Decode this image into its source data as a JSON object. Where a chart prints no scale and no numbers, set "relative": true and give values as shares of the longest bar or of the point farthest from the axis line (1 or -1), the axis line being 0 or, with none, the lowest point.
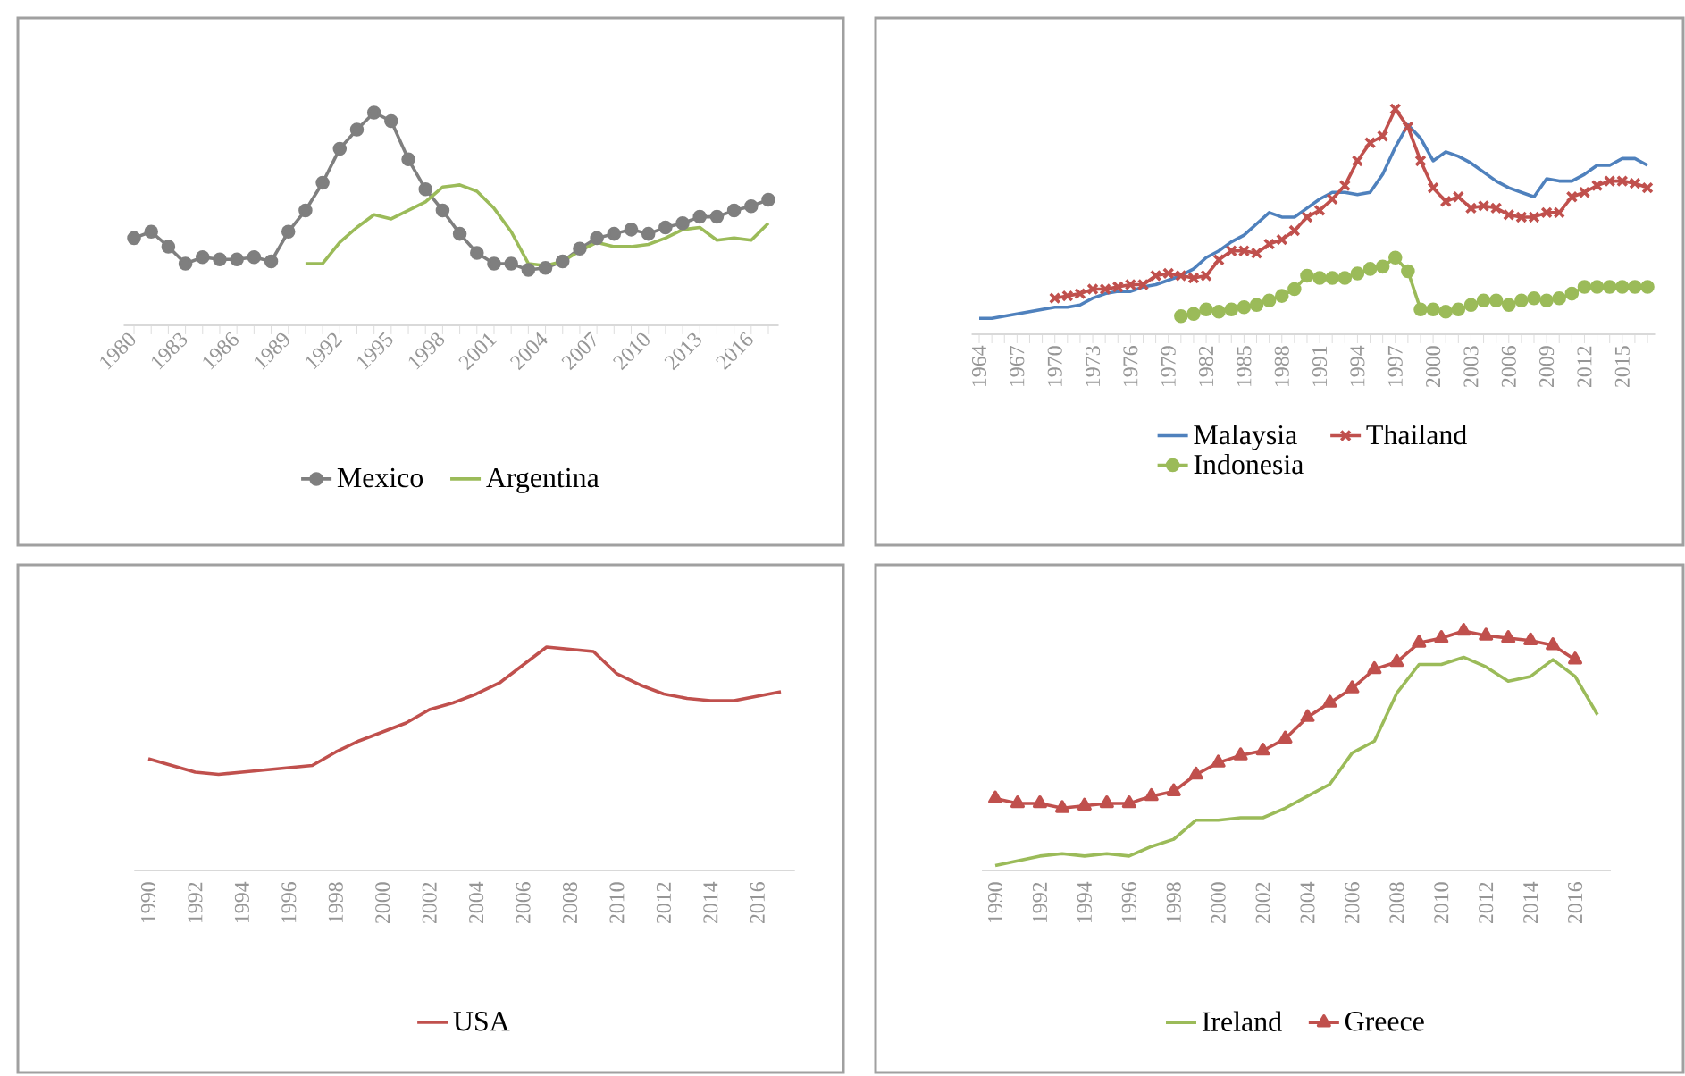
{
  "chart_data": [
    {
      "type": "line",
      "relative": true,
      "legend": "bottom",
      "categories": [
        "1980",
        null,
        null,
        "1983",
        null,
        null,
        "1986",
        null,
        null,
        "1989",
        null,
        null,
        "1992",
        null,
        null,
        "1995",
        null,
        null,
        "1998",
        null,
        null,
        "2001",
        null,
        null,
        "2004",
        null,
        null,
        "2007",
        null,
        null,
        "2010",
        null,
        null,
        "2013",
        null,
        null,
        "2016",
        null
      ],
      "series": [
        {
          "name": "Mexico",
          "color": "#7f7f7f",
          "marker": "circle",
          "values": [
            0.41,
            0.44,
            0.37,
            0.29,
            0.32,
            0.31,
            0.31,
            0.32,
            0.3,
            0.44,
            0.54,
            0.67,
            0.83,
            0.92,
            1,
            0.96,
            0.78,
            0.64,
            0.54,
            0.43,
            0.34,
            0.29,
            0.29,
            0.26,
            0.27,
            0.3,
            0.36,
            0.41,
            0.43,
            0.45,
            0.43,
            0.46,
            0.48,
            0.51,
            0.51,
            0.54,
            0.56,
            0.59
          ]
        },
        {
          "name": "Argentina",
          "color": "#9bbb59",
          "values": [
            null,
            null,
            null,
            null,
            null,
            null,
            null,
            null,
            null,
            null,
            0.29,
            0.29,
            0.39,
            0.46,
            0.52,
            0.5,
            0.54,
            0.58,
            0.65,
            0.66,
            0.63,
            0.55,
            0.44,
            0.29,
            0.28,
            0.3,
            0.35,
            0.39,
            0.37,
            0.37,
            0.38,
            0.41,
            0.45,
            0.46,
            0.4,
            0.41,
            0.4,
            0.48
          ]
        }
      ]
    },
    {
      "type": "line",
      "relative": true,
      "legend": "bottom",
      "categories": [
        "1964",
        null,
        null,
        "1967",
        null,
        null,
        "1970",
        null,
        null,
        "1973",
        null,
        null,
        "1976",
        null,
        null,
        "1979",
        null,
        null,
        "1982",
        null,
        null,
        "1985",
        null,
        null,
        "1988",
        null,
        null,
        "1991",
        null,
        null,
        "1994",
        null,
        null,
        "1997",
        null,
        null,
        "2000",
        null,
        null,
        "2003",
        null,
        null,
        "2006",
        null,
        null,
        "2009",
        null,
        null,
        "2012",
        null,
        null,
        "2015",
        null,
        null
      ],
      "series": [
        {
          "name": "Malaysia",
          "color": "#4f81bd",
          "values": [
            0.07,
            0.07,
            0.08,
            0.09,
            0.1,
            0.11,
            0.12,
            0.12,
            0.13,
            0.16,
            0.18,
            0.19,
            0.19,
            0.21,
            0.22,
            0.24,
            0.26,
            0.29,
            0.34,
            0.37,
            0.41,
            0.44,
            0.49,
            0.54,
            0.52,
            0.52,
            0.56,
            0.6,
            0.63,
            0.63,
            0.62,
            0.63,
            0.71,
            0.83,
            0.93,
            0.87,
            0.77,
            0.81,
            0.79,
            0.76,
            0.72,
            0.68,
            0.65,
            0.63,
            0.61,
            0.69,
            0.68,
            0.68,
            0.71,
            0.75,
            0.75,
            0.78,
            0.78,
            0.75
          ]
        },
        {
          "name": "Thailand",
          "color": "#c0504d",
          "marker": "cross",
          "values": [
            null,
            null,
            null,
            null,
            null,
            null,
            0.16,
            0.17,
            0.18,
            0.2,
            0.2,
            0.21,
            0.22,
            0.22,
            0.26,
            0.27,
            0.26,
            0.25,
            0.26,
            0.33,
            0.37,
            0.37,
            0.36,
            0.4,
            0.42,
            0.46,
            0.52,
            0.55,
            0.6,
            0.66,
            0.77,
            0.85,
            0.88,
            1,
            0.92,
            0.77,
            0.65,
            0.59,
            0.61,
            0.56,
            0.57,
            0.56,
            0.53,
            0.52,
            0.52,
            0.54,
            0.54,
            0.61,
            0.63,
            0.66,
            0.68,
            0.68,
            0.67,
            0.65
          ]
        },
        {
          "name": "Indonesia",
          "color": "#9bbb59",
          "marker": "circle",
          "values": [
            null,
            null,
            null,
            null,
            null,
            null,
            null,
            null,
            null,
            null,
            null,
            null,
            null,
            null,
            null,
            null,
            0.08,
            0.09,
            0.11,
            0.1,
            0.11,
            0.12,
            0.13,
            0.15,
            0.17,
            0.2,
            0.26,
            0.25,
            0.25,
            0.25,
            0.27,
            0.29,
            0.3,
            0.34,
            0.28,
            0.11,
            0.11,
            0.1,
            0.11,
            0.13,
            0.15,
            0.15,
            0.13,
            0.15,
            0.16,
            0.15,
            0.16,
            0.18,
            0.21,
            0.21,
            0.21,
            0.21,
            0.21,
            0.21
          ]
        }
      ]
    },
    {
      "type": "line",
      "relative": true,
      "legend": "bottom",
      "categories": [
        "1990",
        null,
        "1992",
        null,
        "1994",
        null,
        "1996",
        null,
        "1998",
        null,
        "2000",
        null,
        "2002",
        null,
        "2004",
        null,
        "2006",
        null,
        "2008",
        null,
        "2010",
        null,
        "2012",
        null,
        "2014",
        null,
        "2016",
        null
      ],
      "series": [
        {
          "name": "USA",
          "color": "#c0504d",
          "values": [
            0.5,
            0.47,
            0.44,
            0.43,
            0.44,
            0.45,
            0.46,
            0.47,
            0.53,
            0.58,
            0.62,
            0.66,
            0.72,
            0.75,
            0.79,
            0.84,
            0.92,
            1,
            0.99,
            0.98,
            0.88,
            0.83,
            0.79,
            0.77,
            0.76,
            0.76,
            0.78,
            0.8
          ]
        }
      ]
    },
    {
      "type": "line",
      "relative": true,
      "legend": "bottom",
      "categories": [
        "1990",
        null,
        "1992",
        null,
        "1994",
        null,
        "1996",
        null,
        "1998",
        null,
        "2000",
        null,
        "2002",
        null,
        "2004",
        null,
        "2006",
        null,
        "2008",
        null,
        "2010",
        null,
        "2012",
        null,
        "2014",
        null,
        "2016",
        null
      ],
      "series": [
        {
          "name": "Ireland",
          "color": "#9bbb59",
          "values": [
            0.02,
            0.04,
            0.06,
            0.07,
            0.06,
            0.07,
            0.06,
            0.1,
            0.13,
            0.21,
            0.21,
            0.22,
            0.22,
            0.26,
            0.31,
            0.36,
            0.49,
            0.54,
            0.74,
            0.86,
            0.86,
            0.89,
            0.85,
            0.79,
            0.81,
            0.88,
            0.81,
            0.65
          ]
        },
        {
          "name": "Greece",
          "color": "#c0504d",
          "marker": "triangle",
          "values": [
            0.3,
            0.28,
            0.28,
            0.26,
            0.27,
            0.28,
            0.28,
            0.31,
            0.33,
            0.4,
            0.45,
            0.48,
            0.5,
            0.55,
            0.64,
            0.7,
            0.76,
            0.84,
            0.87,
            0.95,
            0.97,
            1,
            0.98,
            0.97,
            0.96,
            0.94,
            0.88,
            null
          ]
        }
      ]
    }
  ]
}
